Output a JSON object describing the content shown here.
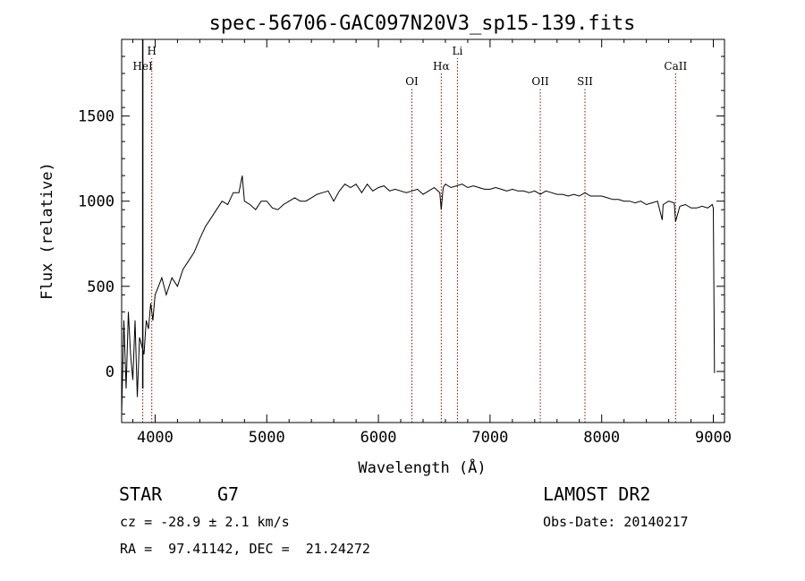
{
  "chart_data": {
    "type": "line",
    "title": "spec-56706-GAC097N20V3_sp15-139.fits",
    "xlabel": "Wavelength (Å)",
    "ylabel": "Flux (relative)",
    "xlim": [
      3700,
      9100
    ],
    "ylim": [
      -300,
      1950
    ],
    "xticks": [
      4000,
      5000,
      6000,
      7000,
      8000,
      9000
    ],
    "yticks": [
      0,
      500,
      1000,
      1500
    ],
    "series": [
      {
        "x": [
          3700,
          3720,
          3740,
          3760,
          3780,
          3800,
          3820,
          3840,
          3860,
          3880,
          3900,
          3920,
          3940,
          3960,
          3980,
          4000,
          4030,
          4060,
          4100,
          4150,
          4200,
          4250,
          4300,
          4350,
          4400,
          4450,
          4500,
          4550,
          4600,
          4650,
          4700,
          4750,
          4780,
          4800,
          4850,
          4900,
          4950,
          5000,
          5050,
          5100,
          5150,
          5200,
          5250,
          5300,
          5350,
          5400,
          5450,
          5500,
          5550,
          5600,
          5650,
          5700,
          5750,
          5800,
          5850,
          5900,
          5950,
          6000,
          6050,
          6100,
          6150,
          6200,
          6250,
          6300,
          6350,
          6400,
          6450,
          6500,
          6550,
          6563,
          6580,
          6600,
          6650,
          6700,
          6750,
          6800,
          6850,
          6900,
          6950,
          7000,
          7050,
          7100,
          7150,
          7200,
          7250,
          7300,
          7350,
          7400,
          7450,
          7500,
          7550,
          7600,
          7650,
          7700,
          7750,
          7800,
          7850,
          7900,
          7950,
          8000,
          8050,
          8100,
          8150,
          8200,
          8250,
          8300,
          8350,
          8400,
          8450,
          8500,
          8542,
          8550,
          8600,
          8650,
          8662,
          8700,
          8750,
          8800,
          8850,
          8900,
          8950,
          8990,
          9000,
          9010
        ],
        "values": [
          -250,
          300,
          -100,
          350,
          100,
          -50,
          300,
          -150,
          200,
          150,
          100,
          300,
          250,
          400,
          300,
          450,
          500,
          550,
          450,
          550,
          500,
          600,
          650,
          700,
          780,
          850,
          900,
          950,
          1000,
          980,
          1050,
          1050,
          1150,
          1000,
          980,
          950,
          1000,
          1000,
          960,
          950,
          980,
          1000,
          1020,
          1000,
          1000,
          1020,
          1040,
          1050,
          1060,
          1000,
          1060,
          1100,
          1080,
          1100,
          1050,
          1100,
          1060,
          1080,
          1090,
          1060,
          1070,
          1060,
          1050,
          1060,
          1070,
          1040,
          1060,
          1080,
          1050,
          950,
          1080,
          1100,
          1080,
          1090,
          1100,
          1080,
          1090,
          1080,
          1070,
          1070,
          1080,
          1070,
          1060,
          1070,
          1060,
          1060,
          1050,
          1060,
          1040,
          1060,
          1050,
          1040,
          1040,
          1030,
          1040,
          1030,
          1050,
          1030,
          1030,
          1030,
          1020,
          1010,
          1010,
          1000,
          1000,
          990,
          1000,
          980,
          990,
          1000,
          890,
          980,
          1000,
          990,
          880,
          970,
          980,
          960,
          960,
          970,
          960,
          980,
          960,
          -10
        ]
      }
    ],
    "grid": false,
    "line_markers": [
      {
        "label": "HeI",
        "x": 3889
      },
      {
        "label": "H",
        "x": 3970
      },
      {
        "label": "OI",
        "x": 6300
      },
      {
        "label": "Hα",
        "x": 6563
      },
      {
        "label": "Li",
        "x": 6708
      },
      {
        "label": "OII",
        "x": 7450
      },
      {
        "label": "SII",
        "x": 7850
      },
      {
        "label": "CaII",
        "x": 8662
      }
    ]
  },
  "info": {
    "object_type": "STAR",
    "subclass": "G7",
    "redshift": "cz = -28.9 ± 2.1 km/s",
    "coords": "RA =  97.41142, DEC =  21.24272",
    "survey": "LAMOST DR2",
    "obs_date": "Obs-Date: 20140217"
  }
}
